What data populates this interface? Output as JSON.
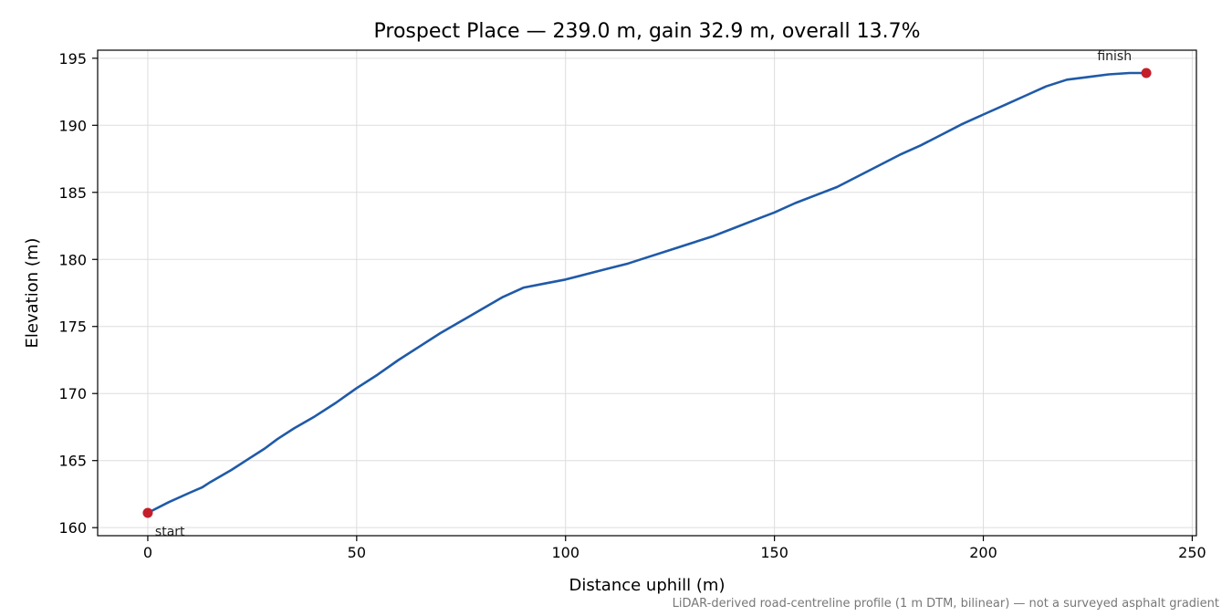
{
  "chart_data": {
    "type": "line",
    "title": "Prospect Place — 239.0 m, gain 32.9 m, overall 13.7%",
    "xlabel": "Distance uphill (m)",
    "ylabel": "Elevation (m)",
    "xlim": [
      -12,
      251
    ],
    "ylim": [
      159.4,
      195.6
    ],
    "xticks": [
      0,
      50,
      100,
      150,
      200,
      250
    ],
    "yticks": [
      160,
      165,
      170,
      175,
      180,
      185,
      190,
      195
    ],
    "grid": true,
    "line_color": "#1f5aa8",
    "marker_color": "#c41e2a",
    "series": [
      {
        "points": [
          [
            0,
            161.1
          ],
          [
            5,
            161.9
          ],
          [
            10,
            162.6
          ],
          [
            13,
            163.0
          ],
          [
            15,
            163.4
          ],
          [
            20,
            164.3
          ],
          [
            24,
            165.1
          ],
          [
            28,
            165.9
          ],
          [
            31,
            166.6
          ],
          [
            35,
            167.4
          ],
          [
            40,
            168.3
          ],
          [
            45,
            169.3
          ],
          [
            50,
            170.4
          ],
          [
            55,
            171.4
          ],
          [
            60,
            172.5
          ],
          [
            65,
            173.5
          ],
          [
            70,
            174.5
          ],
          [
            75,
            175.4
          ],
          [
            80,
            176.3
          ],
          [
            85,
            177.2
          ],
          [
            90,
            177.9
          ],
          [
            95,
            178.2
          ],
          [
            100,
            178.5
          ],
          [
            105,
            178.9
          ],
          [
            110,
            179.3
          ],
          [
            115,
            179.7
          ],
          [
            120,
            180.2
          ],
          [
            125,
            180.7
          ],
          [
            130,
            181.2
          ],
          [
            135,
            181.7
          ],
          [
            140,
            182.3
          ],
          [
            145,
            182.9
          ],
          [
            150,
            183.5
          ],
          [
            155,
            184.2
          ],
          [
            160,
            184.8
          ],
          [
            165,
            185.4
          ],
          [
            170,
            186.2
          ],
          [
            175,
            187.0
          ],
          [
            180,
            187.8
          ],
          [
            185,
            188.5
          ],
          [
            190,
            189.3
          ],
          [
            195,
            190.1
          ],
          [
            200,
            190.8
          ],
          [
            205,
            191.5
          ],
          [
            210,
            192.2
          ],
          [
            215,
            192.9
          ],
          [
            220,
            193.4
          ],
          [
            225,
            193.6
          ],
          [
            230,
            193.8
          ],
          [
            235,
            193.9
          ],
          [
            239,
            193.9
          ]
        ]
      }
    ],
    "markers": [
      {
        "label": "start",
        "x": 0,
        "y": 161.1
      },
      {
        "label": "finish",
        "x": 239,
        "y": 193.9
      }
    ],
    "footnote": "LiDAR-derived road-centreline profile (1 m DTM, bilinear) — not a surveyed asphalt gradient"
  }
}
